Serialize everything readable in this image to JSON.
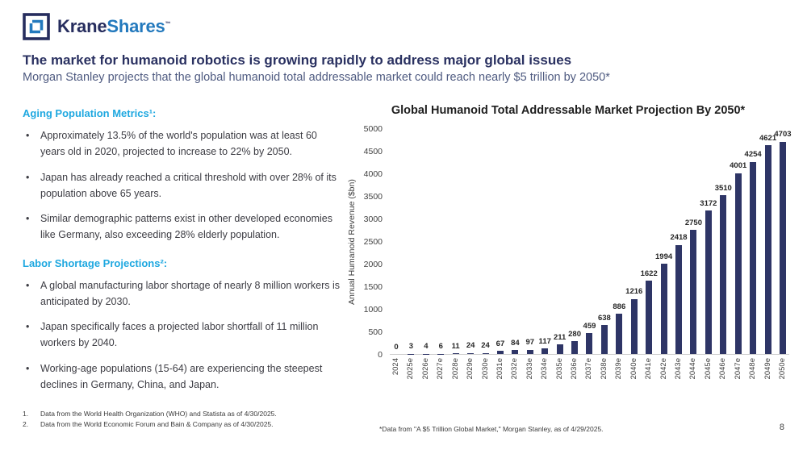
{
  "brand": {
    "name_primary": "Krane",
    "name_secondary": "Shares",
    "trademark": "™"
  },
  "header": {
    "title": "The market for humanoid robotics is growing rapidly to address major global issues",
    "subtitle": "Morgan Stanley projects that the global humanoid total addressable market could reach nearly $5 trillion by 2050*"
  },
  "left": {
    "sections": [
      {
        "heading": "Aging Population Metrics¹:",
        "bullets": [
          "Approximately 13.5% of the world's population was at least 60 years old in 2020, projected to increase to 22% by 2050.",
          "Japan has already reached a critical threshold with over 28% of its population above 65 years.",
          "Similar demographic patterns exist in other developed economies like Germany, also exceeding 28% elderly population."
        ]
      },
      {
        "heading": "Labor Shortage Projections²:",
        "bullets": [
          "A global manufacturing labor shortage of nearly 8 million workers is anticipated by 2030.",
          "Japan specifically faces a projected labor shortfall of 11 million workers by 2040.",
          "Working-age populations (15-64) are experiencing the steepest declines in Germany, China, and Japan."
        ]
      }
    ]
  },
  "footnotes": [
    {
      "num": "1.",
      "text": "Data from the World Health Organization (WHO) and Statista as of 4/30/2025."
    },
    {
      "num": "2.",
      "text": "Data from the World Economic Forum and Bain & Company as of 4/30/2025."
    }
  ],
  "chart_footnote": "*Data from \"A $5 Trillion Global Market,\" Morgan Stanley, as of 4/29/2025.",
  "page_number": "8",
  "colors": {
    "navy": "#262D5E",
    "logo_blue": "#2379BD",
    "accent_blue": "#1FA8E0",
    "subtitle_blue_gray": "#4E5A80",
    "bar_navy": "#2E3566",
    "body_text": "#3C3C43"
  },
  "chart_data": {
    "type": "bar",
    "title": "Global Humanoid Total Addressable Market Projection By 2050*",
    "xlabel": "",
    "ylabel": "Annual Humanoid Revenue ($bn)",
    "ylim": [
      0,
      5000
    ],
    "ytick_step": 500,
    "grid": false,
    "legend": null,
    "bar_color": "#2E3566",
    "categories": [
      "2024",
      "2025e",
      "2026e",
      "2027e",
      "2028e",
      "2029e",
      "2030e",
      "2031e",
      "2032e",
      "2033e",
      "2034e",
      "2035e",
      "2036e",
      "2037e",
      "2038e",
      "2039e",
      "2040e",
      "2041e",
      "2042e",
      "2043e",
      "2044e",
      "2045e",
      "2046e",
      "2047e",
      "2048e",
      "2049e",
      "2050e"
    ],
    "values": [
      0,
      3,
      4,
      6,
      11,
      24,
      24,
      67,
      84,
      97,
      117,
      211,
      280,
      459,
      638,
      886,
      1216,
      1622,
      1994,
      2418,
      2750,
      3172,
      3510,
      4001,
      4254,
      4621,
      4703
    ]
  }
}
